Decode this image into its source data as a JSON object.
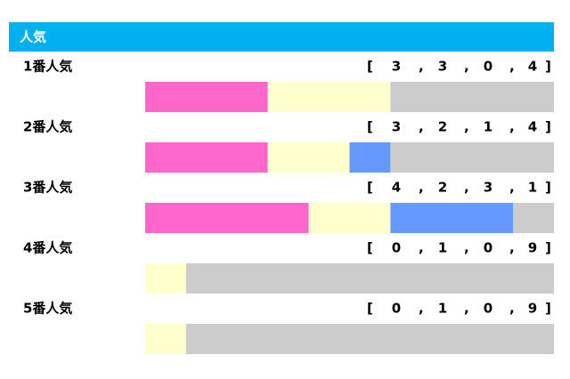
{
  "chart_data": {
    "type": "stacked-hbar",
    "title": "人気",
    "categories": [
      "1番人気",
      "2番人気",
      "3番人気",
      "4番人気",
      "5番人気"
    ],
    "bracket_open": "[",
    "separator": ",",
    "bracket_close": "]",
    "xlim": [
      0,
      10
    ],
    "series": [
      {
        "color": "#ff66cc",
        "values": [
          3,
          3,
          4,
          0,
          0
        ]
      },
      {
        "color": "#ffffcc",
        "values": [
          3,
          2,
          2,
          1,
          1
        ]
      },
      {
        "color": "#6699ff",
        "values": [
          0,
          1,
          3,
          0,
          0
        ]
      },
      {
        "color": "#cccccc",
        "values": [
          4,
          4,
          1,
          9,
          9
        ]
      }
    ]
  }
}
